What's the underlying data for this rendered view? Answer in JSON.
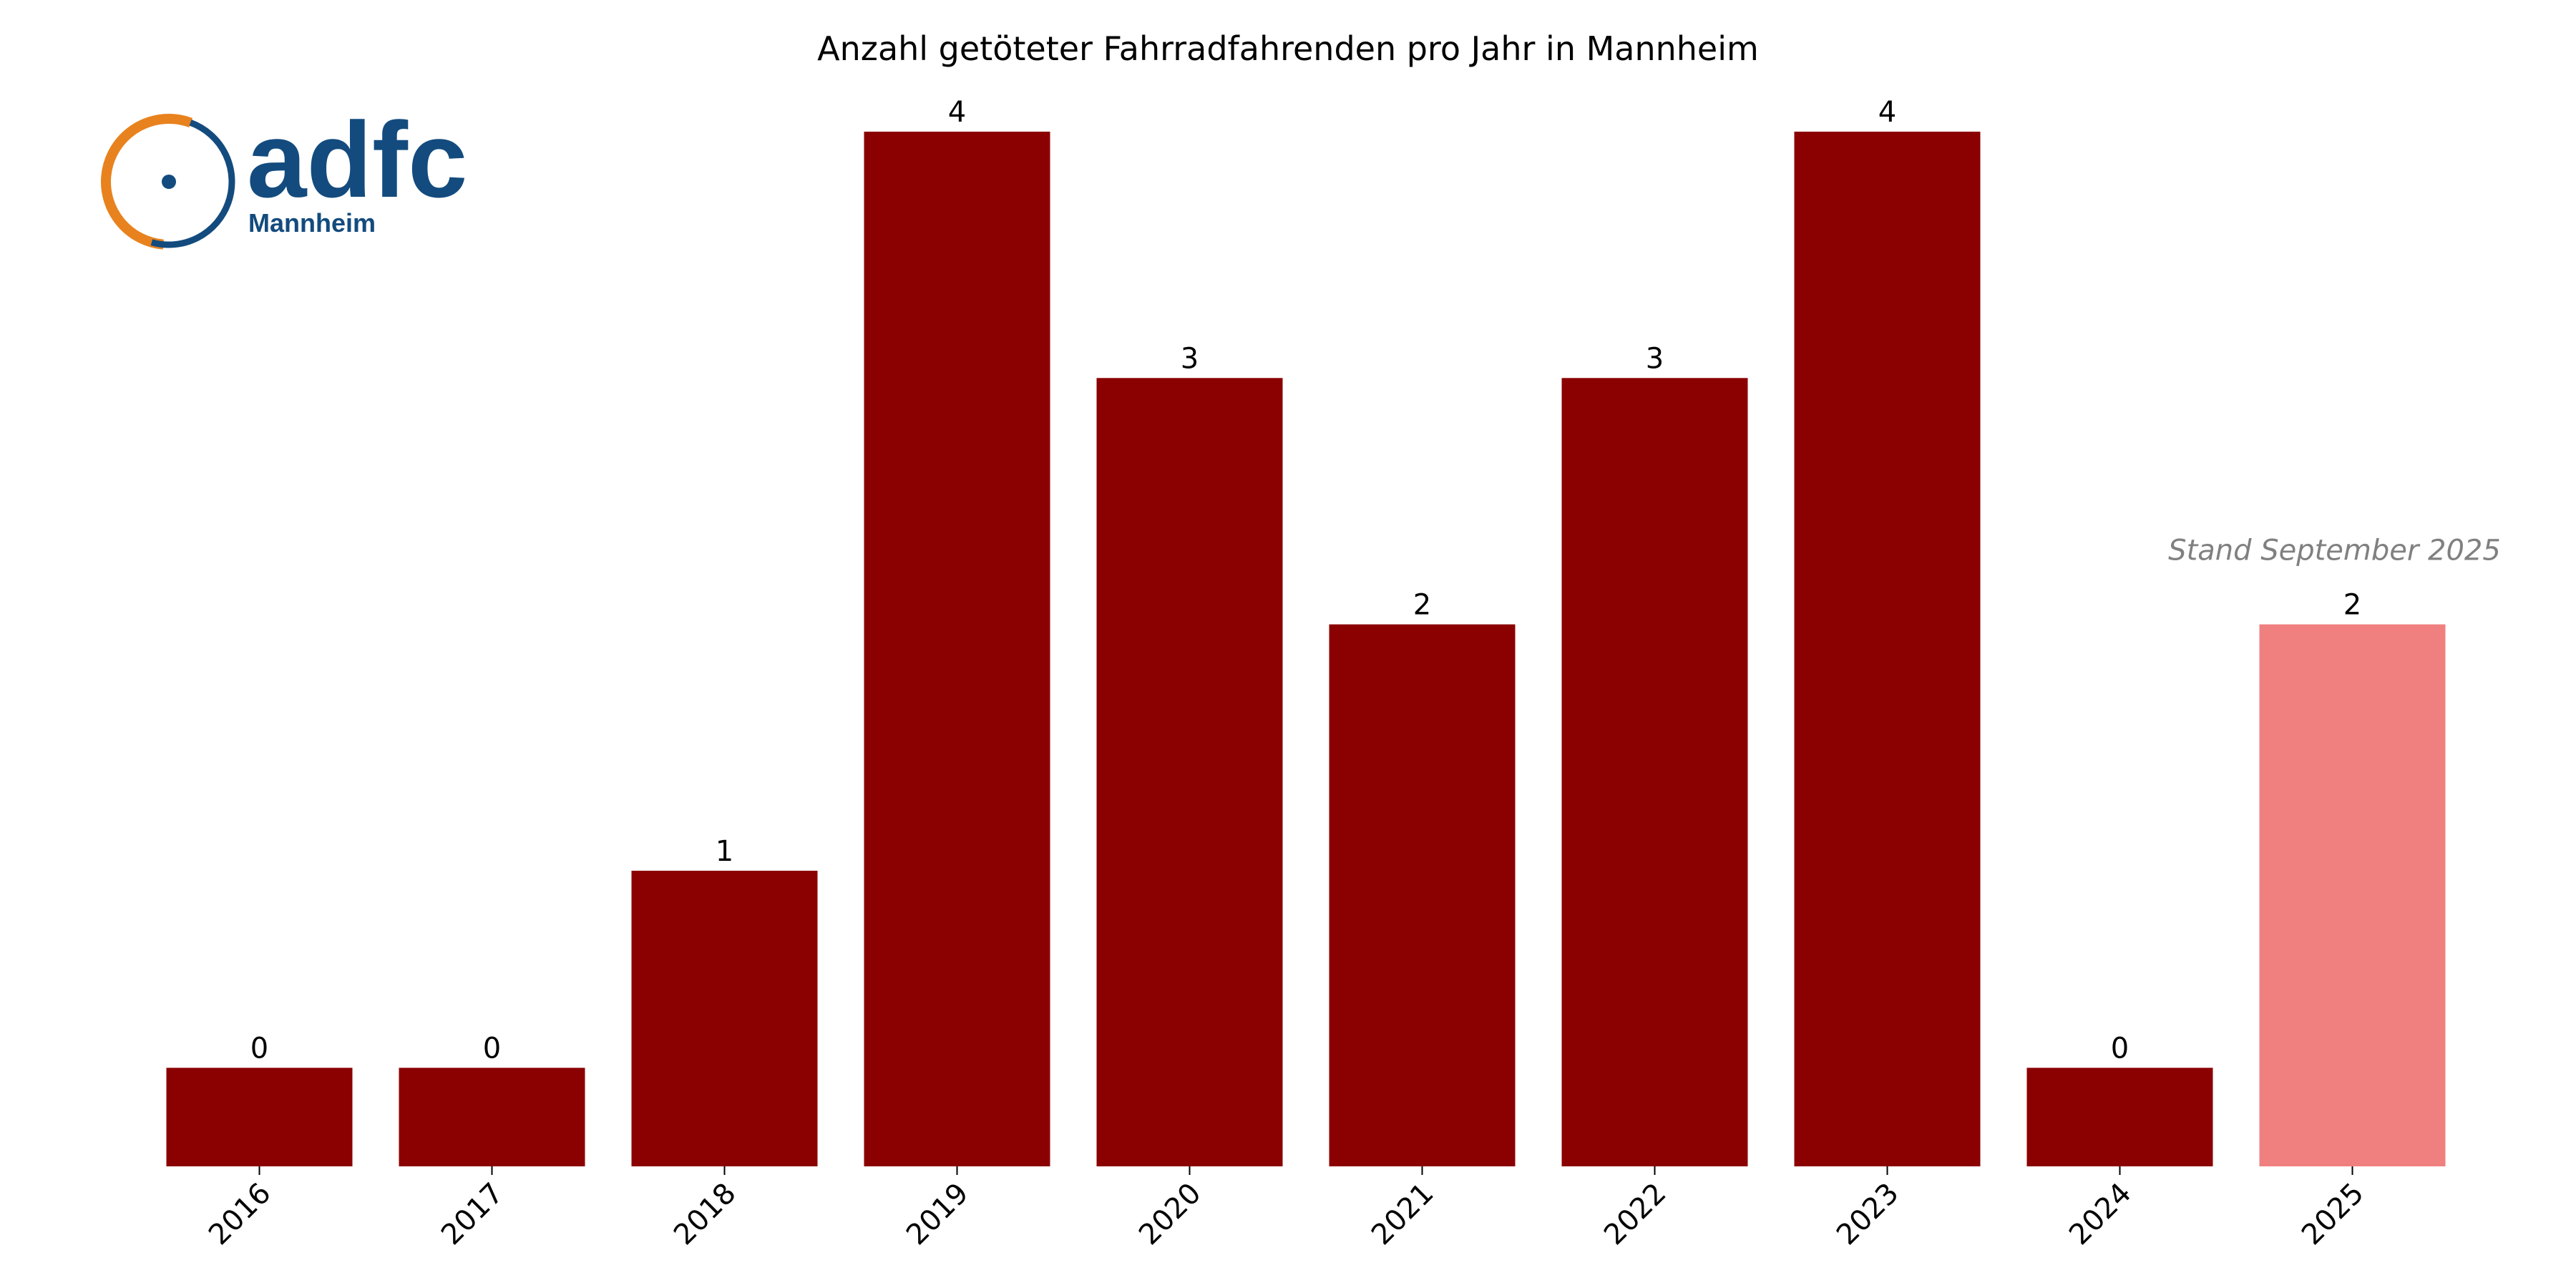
{
  "logo": {
    "wordmark": "adfc",
    "subtitle": "Mannheim",
    "ring_orange": "#e8821e",
    "ring_blue": "#134b7e",
    "text_color": "#134b7e"
  },
  "chart_data": {
    "type": "bar",
    "title": "Anzahl getöteter Fahrradfahrenden pro Jahr in Mannheim",
    "xlabel": "",
    "ylabel": "",
    "categories": [
      "2016",
      "2017",
      "2018",
      "2019",
      "2020",
      "2021",
      "2022",
      "2023",
      "2024",
      "2025"
    ],
    "values": [
      0,
      0,
      1,
      4,
      3,
      2,
      3,
      4,
      0,
      2
    ],
    "value_labels": [
      "0",
      "0",
      "1",
      "4",
      "3",
      "2",
      "3",
      "4",
      "0",
      "2"
    ],
    "ylim": [
      -0.2,
      4
    ],
    "zero_bar_display_value": 0.2,
    "colors": {
      "default": "#8b0000",
      "highlight": "#f08080"
    },
    "highlight_category": "2025",
    "annotation": {
      "category": "2025",
      "text": "Stand September 2025",
      "color": "#808080"
    },
    "grid": false,
    "spines": false,
    "y_ticks_visible": false,
    "x_tick_rotation": 45
  }
}
